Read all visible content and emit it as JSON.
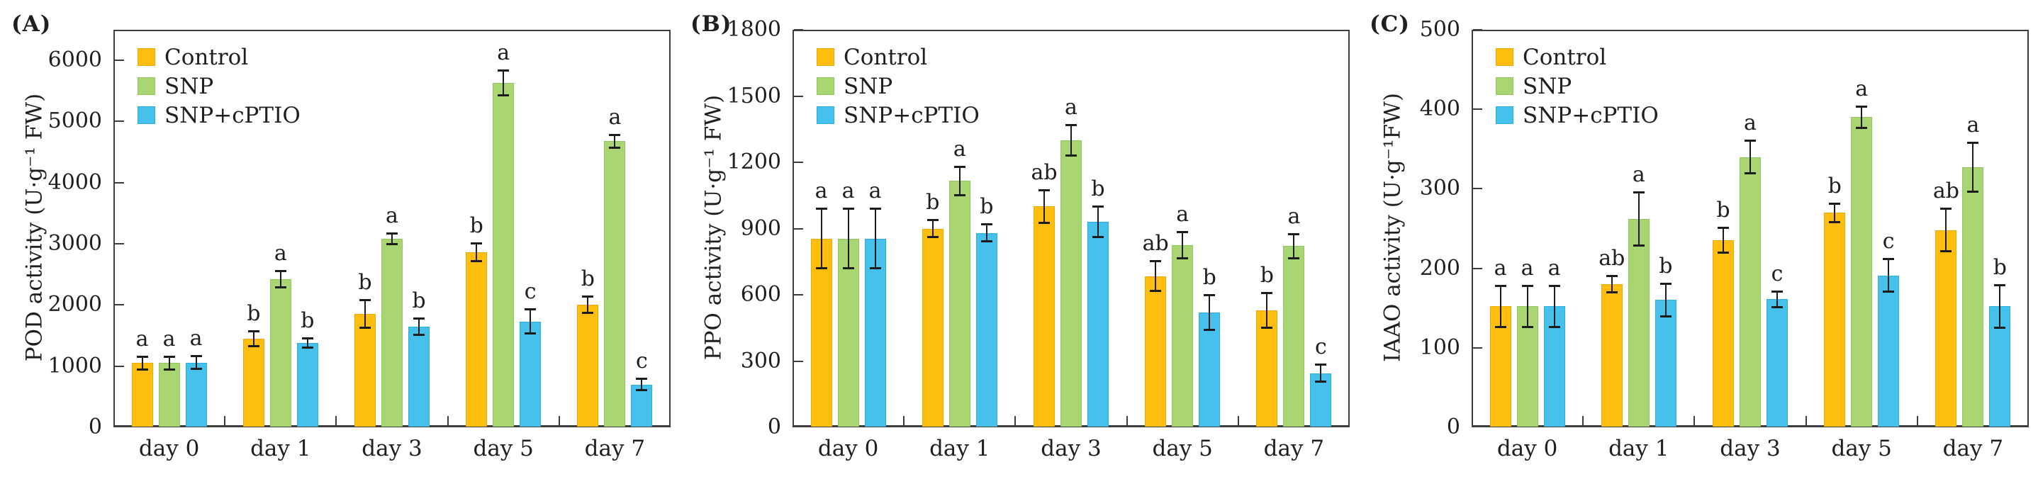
{
  "figure": {
    "background": "#ffffff",
    "text_color": "#1f1f1f",
    "axis_color": "#3d3d3d",
    "error_bar_color": "#1c1c1c"
  },
  "legend": {
    "position": "top-left-inside",
    "items": [
      {
        "label": "Control",
        "color": "#FDBE10",
        "border": "#F0A900"
      },
      {
        "label": "SNP",
        "color": "#A9D572",
        "border": "#8FC75B"
      },
      {
        "label": "SNP+cPTIO",
        "color": "#45C1EC",
        "border": "#2BAEDE"
      }
    ]
  },
  "chart_data": [
    {
      "type": "bar",
      "panel": "(A)",
      "ylabel": "POD activity (U·g⁻¹ FW)",
      "xlabel": "",
      "categories": [
        "day 0",
        "day 1",
        "day 3",
        "day 5",
        "day 7"
      ],
      "ylim": [
        0,
        6500
      ],
      "yticks": [
        0,
        1000,
        2000,
        3000,
        4000,
        5000,
        6000
      ],
      "grid": false,
      "series": [
        {
          "name": "Control",
          "color": "#FDBE10",
          "border": "#F0A900",
          "values": [
            1050,
            1450,
            1850,
            2860,
            2000
          ],
          "errors": [
            110,
            130,
            230,
            150,
            140
          ],
          "letters": [
            "a",
            "b",
            "b",
            "b",
            "b"
          ]
        },
        {
          "name": "SNP",
          "color": "#A9D572",
          "border": "#8FC75B",
          "values": [
            1050,
            2420,
            3080,
            5630,
            4680
          ],
          "errors": [
            110,
            140,
            90,
            210,
            110
          ],
          "letters": [
            "a",
            "a",
            "a",
            "a",
            "a"
          ]
        },
        {
          "name": "SNP+cPTIO",
          "color": "#45C1EC",
          "border": "#2BAEDE",
          "values": [
            1060,
            1380,
            1650,
            1730,
            700
          ],
          "errors": [
            110,
            80,
            140,
            200,
            100
          ],
          "letters": [
            "a",
            "b",
            "b",
            "c",
            "c"
          ]
        }
      ]
    },
    {
      "type": "bar",
      "panel": "(B)",
      "ylabel": "PPO activity (U·g⁻¹ FW)",
      "xlabel": "",
      "categories": [
        "day 0",
        "day 1",
        "day 3",
        "day 5",
        "day 7"
      ],
      "ylim": [
        0,
        1800
      ],
      "yticks": [
        0,
        300,
        600,
        900,
        1200,
        1500,
        1800
      ],
      "grid": false,
      "series": [
        {
          "name": "Control",
          "color": "#FDBE10",
          "border": "#F0A900",
          "values": [
            855,
            900,
            1000,
            685,
            530
          ],
          "errors": [
            135,
            40,
            75,
            70,
            80
          ],
          "letters": [
            "a",
            "b",
            "ab",
            "ab",
            "b"
          ]
        },
        {
          "name": "SNP",
          "color": "#A9D572",
          "border": "#8FC75B",
          "values": [
            855,
            1115,
            1300,
            825,
            820
          ],
          "errors": [
            135,
            65,
            70,
            60,
            55
          ],
          "letters": [
            "a",
            "a",
            "a",
            "a",
            "a"
          ]
        },
        {
          "name": "SNP+cPTIO",
          "color": "#45C1EC",
          "border": "#2BAEDE",
          "values": [
            855,
            880,
            930,
            520,
            245
          ],
          "errors": [
            135,
            40,
            70,
            80,
            40
          ],
          "letters": [
            "a",
            "b",
            "b",
            "b",
            "c"
          ]
        }
      ]
    },
    {
      "type": "bar",
      "panel": "(C)",
      "ylabel": "IAAO activity (U·g⁻¹FW)",
      "xlabel": "",
      "categories": [
        "day 0",
        "day 1",
        "day 3",
        "day 5",
        "day 7"
      ],
      "ylim": [
        0,
        500
      ],
      "yticks": [
        0,
        100,
        200,
        300,
        400,
        500
      ],
      "grid": false,
      "series": [
        {
          "name": "Control",
          "color": "#FDBE10",
          "border": "#F0A900",
          "values": [
            152,
            180,
            235,
            270,
            248
          ],
          "errors": [
            26,
            11,
            16,
            12,
            27
          ],
          "letters": [
            "a",
            "ab",
            "b",
            "b",
            "ab"
          ]
        },
        {
          "name": "SNP",
          "color": "#A9D572",
          "border": "#8FC75B",
          "values": [
            152,
            262,
            340,
            390,
            327
          ],
          "errors": [
            26,
            34,
            21,
            14,
            31
          ],
          "letters": [
            "a",
            "a",
            "a",
            "a",
            "a"
          ]
        },
        {
          "name": "SNP+cPTIO",
          "color": "#45C1EC",
          "border": "#2BAEDE",
          "values": [
            152,
            160,
            161,
            191,
            152
          ],
          "errors": [
            26,
            21,
            10,
            21,
            27
          ],
          "letters": [
            "a",
            "b",
            "c",
            "c",
            "b"
          ]
        }
      ]
    }
  ]
}
